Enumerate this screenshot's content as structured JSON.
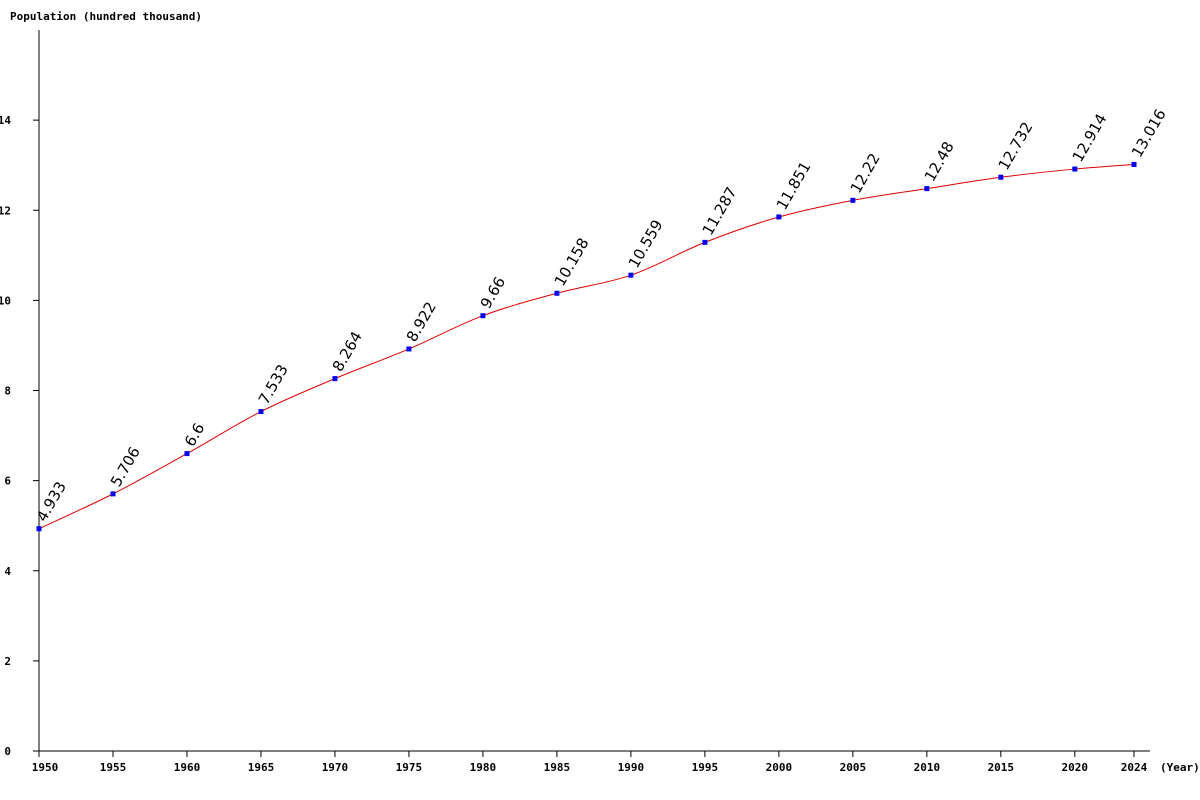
{
  "chart_data": {
    "type": "line",
    "ylabel": "Population (hundred thousand)",
    "xlabel": "(Year)",
    "x": [
      1950,
      1955,
      1960,
      1965,
      1970,
      1975,
      1980,
      1985,
      1990,
      1995,
      2000,
      2005,
      2010,
      2015,
      2020,
      2024
    ],
    "y": [
      4.933,
      5.706,
      6.6,
      7.533,
      8.264,
      8.922,
      9.66,
      10.158,
      10.559,
      11.287,
      11.851,
      12.22,
      12.48,
      12.732,
      12.914,
      13.016
    ],
    "data_labels": [
      "4.933",
      "5.706",
      "6.6",
      "7.533",
      "8.264",
      "8.922",
      "9.66",
      "10.158",
      "10.559",
      "11.287",
      "11.851",
      "12.22",
      "12.48",
      "12.732",
      "12.914",
      "13.016"
    ],
    "x_tick_labels": [
      "1950",
      "1955",
      "1960",
      "1965",
      "1970",
      "1975",
      "1980",
      "1985",
      "1990",
      "1995",
      "2000",
      "2005",
      "2010",
      "2015",
      "2020",
      "2024"
    ],
    "y_ticks": [
      0,
      2,
      4,
      6,
      8,
      10,
      12,
      14
    ],
    "y_tick_labels": [
      "0",
      "2",
      "4",
      "6",
      "8",
      "10",
      "12",
      "14"
    ],
    "ylim": [
      0,
      16
    ],
    "xlim": [
      1950,
      2024
    ],
    "grid": false,
    "legend": "none",
    "colors": {
      "line": "#dd0000",
      "marker": "#0000ee",
      "axis": "#000000",
      "background": "#ffffff"
    }
  }
}
